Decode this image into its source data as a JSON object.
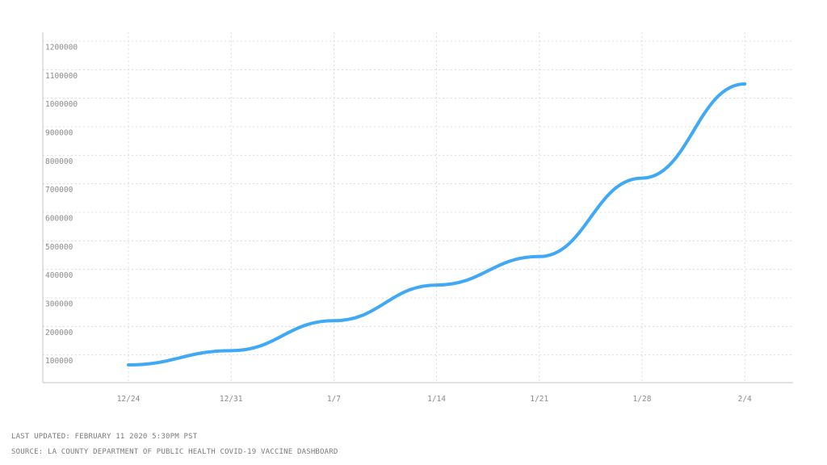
{
  "chart_data": {
    "type": "line",
    "title": "",
    "xlabel": "",
    "ylabel": "",
    "x_ticks": [
      "12/24",
      "12/31",
      "1/7",
      "1/14",
      "1/21",
      "1/28",
      "2/4"
    ],
    "y_ticks": [
      "100000",
      "200000",
      "300000",
      "400000",
      "500000",
      "600000",
      "700000",
      "800000",
      "900000",
      "1000000",
      "1100000",
      "1200000"
    ],
    "ylim": [
      0,
      1200000
    ],
    "grid": true,
    "series": [
      {
        "color": "#3fa9f5",
        "points": [
          {
            "x": "12/24",
            "y": 65000
          },
          {
            "x": "12/31",
            "y": 115000
          },
          {
            "x": "1/7",
            "y": 220000
          },
          {
            "x": "1/14",
            "y": 345000
          },
          {
            "x": "1/21",
            "y": 445000
          },
          {
            "x": "1/28",
            "y": 720000
          },
          {
            "x": "2/4",
            "y": 1050000
          }
        ]
      }
    ]
  },
  "footer": {
    "last_updated": "LAST UPDATED: FEBRUARY 11 2020 5:30PM PST",
    "source": "SOURCE: LA COUNTY DEPARTMENT OF PUBLIC HEALTH COVID-19 VACCINE DASHBOARD"
  }
}
